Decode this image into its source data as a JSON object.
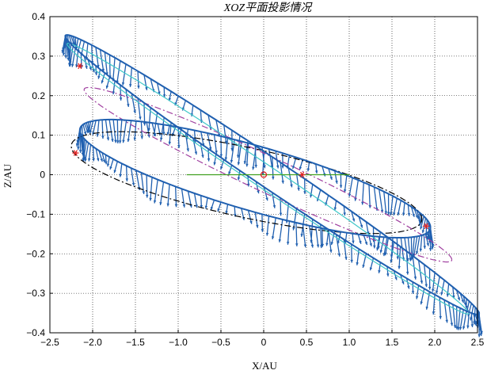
{
  "chart_data": {
    "type": "line",
    "title": "XOZ平面投影情况",
    "xlabel": "X/AU",
    "ylabel": "Z/AU",
    "xlim": [
      -2.5,
      2.5
    ],
    "ylim": [
      -0.4,
      0.4
    ],
    "xticks": [
      -2.5,
      -2.0,
      -1.5,
      -1.0,
      -0.5,
      0,
      0.5,
      1.0,
      1.5,
      2.0,
      2.5
    ],
    "xtick_labels": [
      "−2.5",
      "−2.0",
      "−1.5",
      "−1.0",
      "−0.5",
      "0",
      "0.5",
      "1.0",
      "1.5",
      "2.0",
      "2.5"
    ],
    "yticks": [
      -0.4,
      -0.3,
      -0.2,
      -0.1,
      0,
      0.1,
      0.2,
      0.3,
      0.4
    ],
    "ytick_labels": [
      "−0.4",
      "−0.3",
      "−0.2",
      "−0.1",
      "0",
      "0.1",
      "0.2",
      "0.3",
      "0.4"
    ],
    "grid": "dotted",
    "legend": "none",
    "series": [
      {
        "style": "dash-dot",
        "color": "#000000",
        "ellipse": {
          "center": [
            -0.2,
            -0.02
          ],
          "rx": 2.05,
          "ry": 0.09,
          "tilt_slope": -0.045
        }
      },
      {
        "style": "dash-dot",
        "color": "#a040a0",
        "ellipse": {
          "center": [
            0.05,
            0.0
          ],
          "rx": 2.15,
          "ry": 0.05,
          "tilt_slope": -0.1
        }
      },
      {
        "style": "solid",
        "color": "#40c8c8",
        "ellipse": {
          "center": [
            0.05,
            -0.01
          ],
          "rx": 2.35,
          "ry": 0.035,
          "tilt_slope": -0.145
        }
      },
      {
        "style": "solid",
        "color": "#2060b0",
        "ellipse": {
          "center": [
            0.1,
            0.0
          ],
          "rx": 2.42,
          "ry": 0.045,
          "tilt_slope": -0.145
        }
      },
      {
        "style": "solid",
        "color": "#2060b0",
        "ellipse": {
          "center": [
            -0.1,
            -0.01
          ],
          "rx": 2.05,
          "ry": 0.085,
          "tilt_slope": -0.06
        }
      },
      {
        "style": "solid",
        "color": "#40a020",
        "x": [
          -0.9,
          0.0,
          1.0
        ],
        "y": [
          0.0,
          0.0,
          0.0
        ]
      }
    ],
    "vector_fields": [
      {
        "color": "#2060b0",
        "along_series": 3,
        "arrow_dx": 0.0,
        "arrow_dy": -0.06
      },
      {
        "color": "#2060b0",
        "along_series": 4,
        "arrow_dx": 0.0,
        "arrow_dy": -0.06
      }
    ],
    "markers": [
      {
        "x": 0.0,
        "y": 0.0,
        "symbol": "circle",
        "color": "#e02020"
      },
      {
        "x": 0.45,
        "y": 0.0,
        "symbol": "asterisk",
        "color": "#e02020"
      },
      {
        "x": -2.2,
        "y": 0.055,
        "symbol": "asterisk",
        "color": "#e02020"
      },
      {
        "x": -2.15,
        "y": 0.275,
        "symbol": "asterisk",
        "color": "#e02020"
      },
      {
        "x": 1.9,
        "y": -0.13,
        "symbol": "asterisk",
        "color": "#e02020"
      }
    ]
  }
}
